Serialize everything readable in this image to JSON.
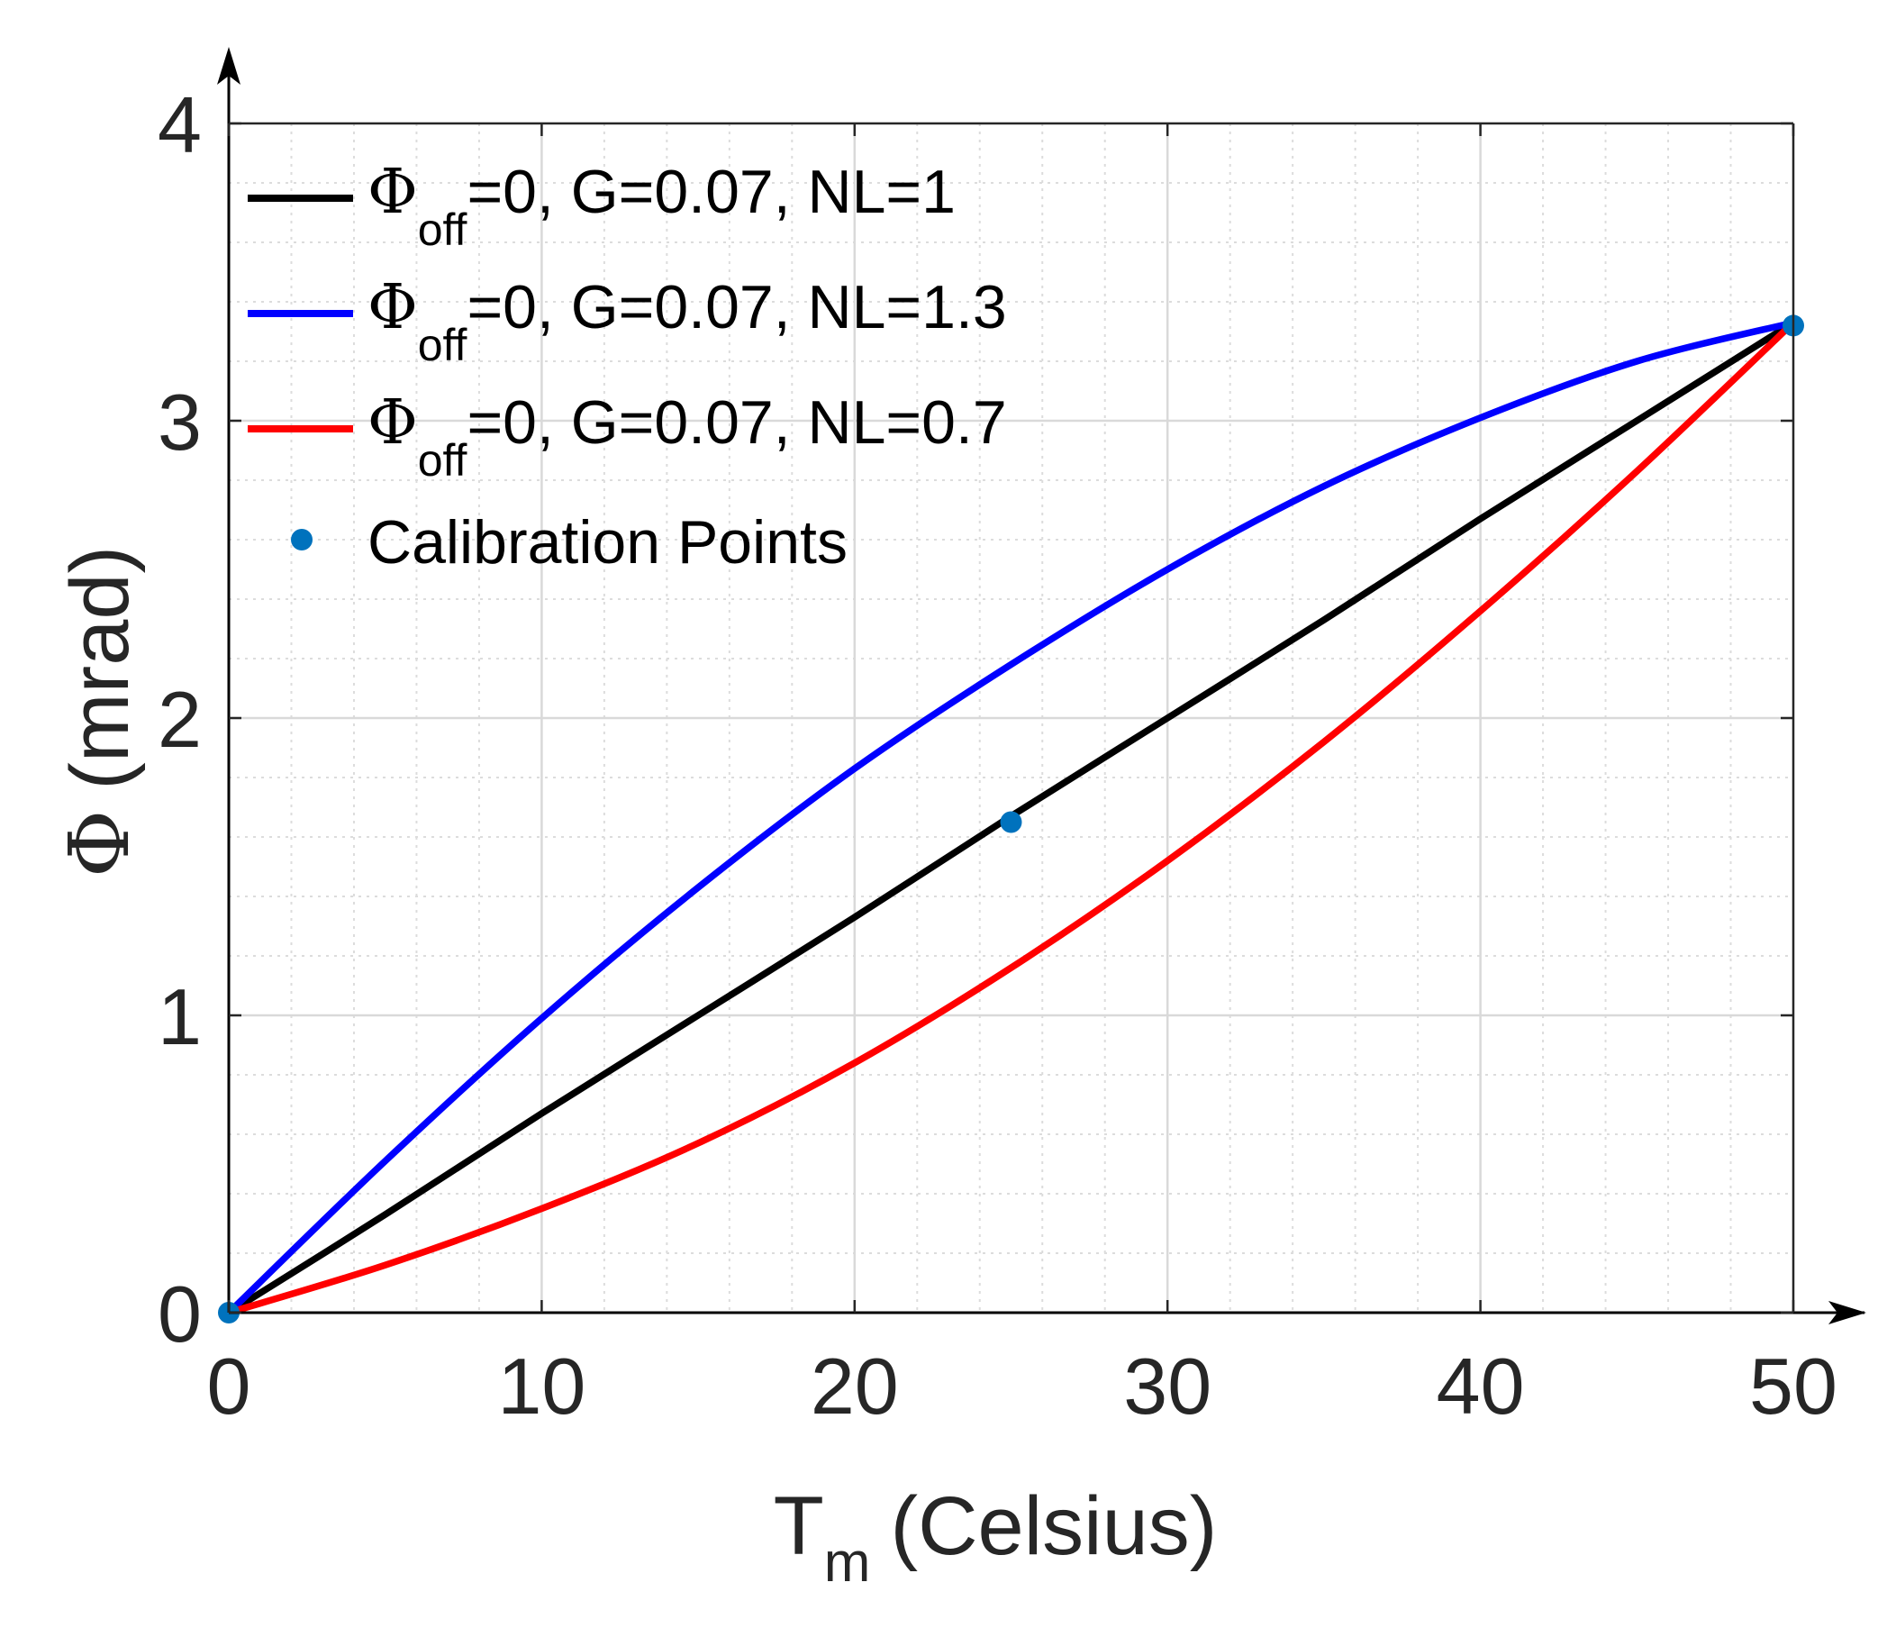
{
  "chart_data": {
    "type": "line",
    "xlabel": {
      "symbol": "T",
      "subscript": "m",
      "text": "(Celsius)"
    },
    "ylabel": {
      "symbol": "Φ",
      "text": "(mrad)"
    },
    "xlim": [
      0,
      50
    ],
    "ylim": [
      0,
      4
    ],
    "xticks": [
      0,
      10,
      20,
      30,
      40,
      50
    ],
    "yticks": [
      0,
      1,
      2,
      3,
      4
    ],
    "xtick_labels": [
      "0",
      "10",
      "20",
      "30",
      "40",
      "50"
    ],
    "ytick_labels": [
      "0",
      "1",
      "2",
      "3",
      "4"
    ],
    "grid": true,
    "minor_grid": true,
    "legend_position": "top-left",
    "series": [
      {
        "name": "Φoff=0, G=0.07, NL=1",
        "label": {
          "symbol": "Φ",
          "subscript": "off",
          "rest": "=0, G=0.07, NL=1"
        },
        "color": "#000000",
        "x": [
          0,
          5,
          10,
          15,
          20,
          25,
          30,
          35,
          40,
          45,
          50
        ],
        "y": [
          0,
          0.33,
          0.67,
          1.0,
          1.33,
          1.67,
          2.0,
          2.33,
          2.67,
          3.0,
          3.33
        ]
      },
      {
        "name": "Φoff=0, G=0.07, NL=1.3",
        "label": {
          "symbol": "Φ",
          "subscript": "off",
          "rest": "=0, G=0.07, NL=1.3"
        },
        "color": "#0000ff",
        "x": [
          0,
          5,
          10,
          15,
          20,
          25,
          30,
          35,
          40,
          45,
          50
        ],
        "y": [
          0,
          0.51,
          0.99,
          1.43,
          1.83,
          2.18,
          2.5,
          2.78,
          3.01,
          3.2,
          3.33
        ]
      },
      {
        "name": "Φoff=0, G=0.07, NL=0.7",
        "label": {
          "symbol": "Φ",
          "subscript": "off",
          "rest": "=0, G=0.07, NL=0.7"
        },
        "color": "#ff0000",
        "x": [
          0,
          5,
          10,
          15,
          20,
          25,
          30,
          35,
          40,
          45,
          50
        ],
        "y": [
          0,
          0.16,
          0.35,
          0.57,
          0.84,
          1.16,
          1.52,
          1.92,
          2.36,
          2.83,
          3.33
        ]
      }
    ],
    "calibration_points": {
      "name": "Calibration Points",
      "color": "#0072bd",
      "x": [
        0,
        25,
        50
      ],
      "y": [
        0,
        1.65,
        3.32
      ]
    }
  }
}
